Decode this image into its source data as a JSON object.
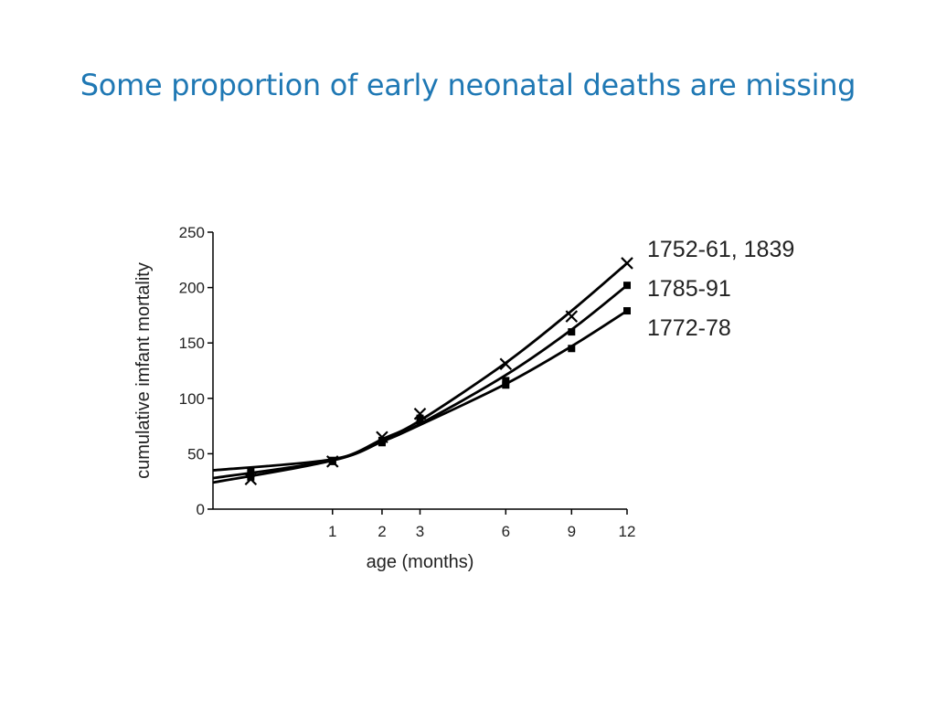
{
  "slide": {
    "title": "Some proportion of early neonatal deaths are missing"
  },
  "chart_data": {
    "type": "line",
    "x_scale": "sqrt",
    "xlabel": "age (months)",
    "ylabel": "cumulative imfant mortality",
    "xlim": [
      0,
      12
    ],
    "ylim": [
      0,
      250
    ],
    "x_ticks": [
      1,
      2,
      3,
      6,
      9,
      12
    ],
    "y_ticks": [
      0,
      50,
      100,
      150,
      200,
      250
    ],
    "grid": false,
    "legend": "right, labels placed at line ends",
    "series": [
      {
        "name": "1752-61, 1839",
        "marker": "x",
        "x": [
          0.1,
          1,
          2,
          3,
          6,
          9,
          12
        ],
        "y": [
          27,
          43,
          65,
          86,
          131,
          174,
          222
        ],
        "fit": [
          [
            0,
            24
          ],
          [
            1,
            44
          ],
          [
            2,
            63
          ],
          [
            3,
            80
          ],
          [
            6,
            132
          ],
          [
            9,
            179
          ],
          [
            12,
            222
          ]
        ]
      },
      {
        "name": "1785-91",
        "marker": "square",
        "x": [
          0.1,
          1,
          2,
          3,
          6,
          9,
          12
        ],
        "y": [
          29,
          44,
          62,
          82,
          116,
          160,
          202
        ],
        "fit": [
          [
            0,
            28
          ],
          [
            1,
            44
          ],
          [
            2,
            61
          ],
          [
            3,
            77
          ],
          [
            6,
            121
          ],
          [
            9,
            162
          ],
          [
            12,
            202
          ]
        ]
      },
      {
        "name": "1772-78",
        "marker": "square",
        "x": [
          0.1,
          1,
          2,
          3,
          6,
          9,
          12
        ],
        "y": [
          35,
          43,
          60,
          80,
          112,
          145,
          179
        ],
        "fit": [
          [
            0,
            35
          ],
          [
            1,
            45
          ],
          [
            2,
            61
          ],
          [
            3,
            76
          ],
          [
            6,
            113
          ],
          [
            9,
            147
          ],
          [
            12,
            179
          ]
        ]
      }
    ]
  }
}
